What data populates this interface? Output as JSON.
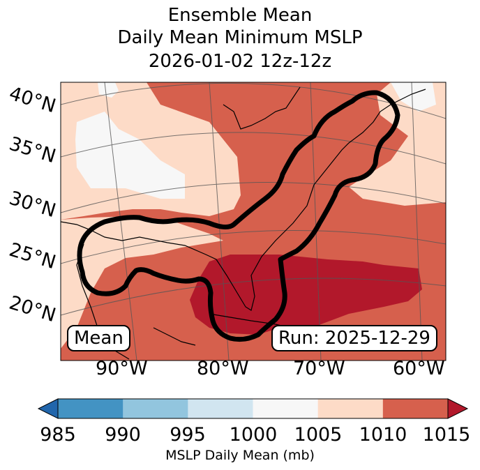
{
  "title": {
    "line1": "Ensemble Mean",
    "line2": "Daily Mean Minimum MSLP",
    "line3": "2026-01-02 12z-12z"
  },
  "map": {
    "lat_labels": [
      "40°N",
      "35°N",
      "30°N",
      "25°N",
      "20°N"
    ],
    "lon_labels": [
      "90°W",
      "80°W",
      "70°W",
      "60°W"
    ],
    "mean_label": "Mean",
    "run_label": "Run: 2025-12-29",
    "contour_color": "#000000"
  },
  "colorbar": {
    "label": "MSLP Daily Mean (mb)",
    "ticks": [
      "985",
      "990",
      "995",
      "1000",
      "1005",
      "1010",
      "1015"
    ],
    "colors": [
      "#2166ac",
      "#4393c3",
      "#92c5de",
      "#d1e5f0",
      "#f7f7f7",
      "#fddbc7",
      "#d6604d",
      "#b2182b"
    ]
  }
}
